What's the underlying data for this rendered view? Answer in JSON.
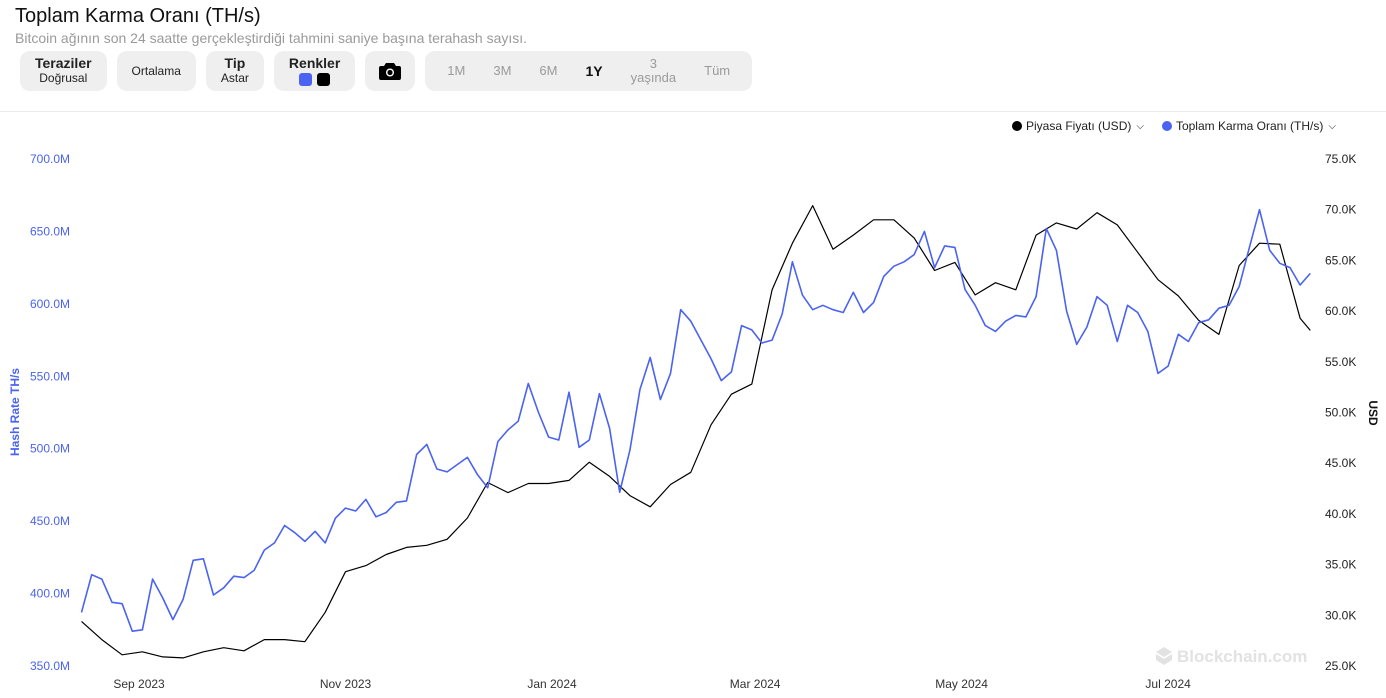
{
  "header": {
    "title": "Toplam Karma Oranı (TH/s)",
    "subtitle": "Bitcoin ağının son 24 saatte gerçekleştirdiği tahmini saniye başına terahash sayısı."
  },
  "toolbar": {
    "scales": {
      "label": "Teraziler",
      "value": "Doğrusal"
    },
    "average": {
      "label": "Ortalama"
    },
    "type": {
      "label": "Tip",
      "value": "Astar"
    },
    "colors": {
      "label": "Renkler",
      "swatches": [
        "#4a63f0",
        "#000000"
      ]
    },
    "camera_icon": "camera-icon",
    "ranges": [
      {
        "label": "1M",
        "active": false
      },
      {
        "label": "3M",
        "active": false
      },
      {
        "label": "6M",
        "active": false
      },
      {
        "label": "1Y",
        "active": true
      },
      {
        "label": "3 yaşında",
        "active": false
      },
      {
        "label": "Tüm",
        "active": false
      }
    ]
  },
  "legend": [
    {
      "label": "Piyasa Fiyatı (USD)",
      "color": "#000000"
    },
    {
      "label": "Toplam Karma Oranı (TH/s)",
      "color": "#4a63f0"
    }
  ],
  "watermark": "Blockchain.com",
  "chart_data": {
    "type": "line",
    "title": "Toplam Karma Oranı (TH/s)",
    "ylabel_left": "Hash Rate TH/s",
    "ylabel_right": "USD",
    "ylim_left": [
      350,
      700
    ],
    "ylim_right": [
      25,
      75
    ],
    "grid": false,
    "legend_placement": "top-right",
    "x_ticks": [
      {
        "date": "2023-09-01",
        "label": "Sep 2023"
      },
      {
        "date": "2023-11-01",
        "label": "Nov 2023"
      },
      {
        "date": "2024-01-01",
        "label": "Jan 2024"
      },
      {
        "date": "2024-03-01",
        "label": "Mar 2024"
      },
      {
        "date": "2024-05-01",
        "label": "May 2024"
      },
      {
        "date": "2024-07-01",
        "label": "Jul 2024"
      }
    ],
    "y_ticks_left": [
      {
        "value": 350,
        "label": "350.0M"
      },
      {
        "value": 400,
        "label": "400.0M"
      },
      {
        "value": 450,
        "label": "450.0M"
      },
      {
        "value": 500,
        "label": "500.0M"
      },
      {
        "value": 550,
        "label": "550.0M"
      },
      {
        "value": 600,
        "label": "600.0M"
      },
      {
        "value": 650,
        "label": "650.0M"
      },
      {
        "value": 700,
        "label": "700.0M"
      }
    ],
    "y_ticks_right": [
      {
        "value": 25,
        "label": "25.0K"
      },
      {
        "value": 30,
        "label": "30.0K"
      },
      {
        "value": 35,
        "label": "35.0K"
      },
      {
        "value": 40,
        "label": "40.0K"
      },
      {
        "value": 45,
        "label": "45.0K"
      },
      {
        "value": 50,
        "label": "50.0K"
      },
      {
        "value": 55,
        "label": "55.0K"
      },
      {
        "value": 60,
        "label": "60.0K"
      },
      {
        "value": 65,
        "label": "65.0K"
      },
      {
        "value": 70,
        "label": "70.0K"
      },
      {
        "value": 75,
        "label": "75.0K"
      }
    ],
    "series": [
      {
        "name": "Toplam Karma Oranı (TH/s)",
        "axis": "left",
        "unit": "M TH/s",
        "color": "#4a63f0",
        "x": [
          "2023-08-15",
          "2023-08-18",
          "2023-08-21",
          "2023-08-24",
          "2023-08-27",
          "2023-08-30",
          "2023-09-02",
          "2023-09-05",
          "2023-09-08",
          "2023-09-11",
          "2023-09-14",
          "2023-09-17",
          "2023-09-20",
          "2023-09-23",
          "2023-09-26",
          "2023-09-29",
          "2023-10-02",
          "2023-10-05",
          "2023-10-08",
          "2023-10-11",
          "2023-10-14",
          "2023-10-17",
          "2023-10-20",
          "2023-10-23",
          "2023-10-26",
          "2023-10-29",
          "2023-11-01",
          "2023-11-04",
          "2023-11-07",
          "2023-11-10",
          "2023-11-13",
          "2023-11-16",
          "2023-11-19",
          "2023-11-22",
          "2023-11-25",
          "2023-11-28",
          "2023-12-01",
          "2023-12-04",
          "2023-12-07",
          "2023-12-10",
          "2023-12-13",
          "2023-12-16",
          "2023-12-19",
          "2023-12-22",
          "2023-12-25",
          "2023-12-28",
          "2023-12-31",
          "2024-01-03",
          "2024-01-06",
          "2024-01-09",
          "2024-01-12",
          "2024-01-15",
          "2024-01-18",
          "2024-01-21",
          "2024-01-24",
          "2024-01-27",
          "2024-01-30",
          "2024-02-02",
          "2024-02-05",
          "2024-02-08",
          "2024-02-11",
          "2024-02-14",
          "2024-02-17",
          "2024-02-20",
          "2024-02-23",
          "2024-02-26",
          "2024-02-29",
          "2024-03-03",
          "2024-03-06",
          "2024-03-09",
          "2024-03-12",
          "2024-03-15",
          "2024-03-18",
          "2024-03-21",
          "2024-03-24",
          "2024-03-27",
          "2024-03-30",
          "2024-04-02",
          "2024-04-05",
          "2024-04-08",
          "2024-04-11",
          "2024-04-14",
          "2024-04-17",
          "2024-04-20",
          "2024-04-23",
          "2024-04-26",
          "2024-04-29",
          "2024-05-02",
          "2024-05-05",
          "2024-05-08",
          "2024-05-11",
          "2024-05-14",
          "2024-05-17",
          "2024-05-20",
          "2024-05-23",
          "2024-05-26",
          "2024-05-29",
          "2024-06-01",
          "2024-06-04",
          "2024-06-07",
          "2024-06-10",
          "2024-06-13",
          "2024-06-16",
          "2024-06-19",
          "2024-06-22",
          "2024-06-25",
          "2024-06-28",
          "2024-07-01",
          "2024-07-04",
          "2024-07-07",
          "2024-07-10",
          "2024-07-13",
          "2024-07-16",
          "2024-07-19",
          "2024-07-22",
          "2024-07-25",
          "2024-07-28",
          "2024-07-31",
          "2024-08-03",
          "2024-08-06",
          "2024-08-09",
          "2024-08-12"
        ],
        "values": [
          387,
          413,
          410,
          394,
          393,
          374,
          375,
          410,
          397,
          382,
          396,
          423,
          424,
          399,
          404,
          412,
          411,
          416,
          430,
          435,
          447,
          442,
          436,
          443,
          435,
          452,
          459,
          457,
          465,
          453,
          456,
          463,
          464,
          496,
          503,
          486,
          484,
          489,
          494,
          482,
          473,
          505,
          513,
          519,
          545,
          525,
          508,
          506,
          539,
          501,
          506,
          538,
          514,
          470,
          499,
          541,
          563,
          534,
          552,
          596,
          588,
          575,
          562,
          547,
          553,
          585,
          582,
          573,
          575,
          593,
          629,
          606,
          596,
          599,
          596,
          594,
          608,
          594,
          601,
          619,
          626,
          629,
          634,
          650,
          625,
          640,
          639,
          610,
          599,
          585,
          581,
          588,
          592,
          591,
          605,
          652,
          637,
          595,
          572,
          584,
          605,
          599,
          574,
          599,
          594,
          581,
          552,
          557,
          579,
          574,
          587,
          589,
          597,
          599,
          612,
          639,
          665,
          637,
          628,
          625,
          613,
          621
        ]
      },
      {
        "name": "Piyasa Fiyatı (USD)",
        "axis": "right",
        "unit": "K USD",
        "color": "#000000",
        "x": [
          "2023-08-15",
          "2023-08-21",
          "2023-08-27",
          "2023-09-02",
          "2023-09-08",
          "2023-09-14",
          "2023-09-20",
          "2023-09-26",
          "2023-10-02",
          "2023-10-08",
          "2023-10-14",
          "2023-10-20",
          "2023-10-26",
          "2023-11-01",
          "2023-11-07",
          "2023-11-13",
          "2023-11-19",
          "2023-11-25",
          "2023-12-01",
          "2023-12-07",
          "2023-12-13",
          "2023-12-19",
          "2023-12-25",
          "2023-12-31",
          "2024-01-06",
          "2024-01-12",
          "2024-01-18",
          "2024-01-24",
          "2024-01-30",
          "2024-02-05",
          "2024-02-11",
          "2024-02-17",
          "2024-02-23",
          "2024-02-29",
          "2024-03-06",
          "2024-03-12",
          "2024-03-18",
          "2024-03-24",
          "2024-03-30",
          "2024-04-05",
          "2024-04-11",
          "2024-04-17",
          "2024-04-23",
          "2024-04-29",
          "2024-05-05",
          "2024-05-11",
          "2024-05-17",
          "2024-05-23",
          "2024-05-29",
          "2024-06-04",
          "2024-06-10",
          "2024-06-16",
          "2024-06-22",
          "2024-06-28",
          "2024-07-04",
          "2024-07-10",
          "2024-07-16",
          "2024-07-22",
          "2024-07-28",
          "2024-08-03",
          "2024-08-09",
          "2024-08-12"
        ],
        "values": [
          29.4,
          27.6,
          26.1,
          26.4,
          25.9,
          25.8,
          26.4,
          26.8,
          26.5,
          27.6,
          27.6,
          27.4,
          30.3,
          34.3,
          34.9,
          36.0,
          36.7,
          36.9,
          37.5,
          39.6,
          43.1,
          42.1,
          43.0,
          43.0,
          43.3,
          45.1,
          43.7,
          41.8,
          40.7,
          42.9,
          44.1,
          48.8,
          51.8,
          52.8,
          62.1,
          66.7,
          70.4,
          66.1,
          67.5,
          69.0,
          69.0,
          67.2,
          64.0,
          64.8,
          61.6,
          62.8,
          62.1,
          67.5,
          68.7,
          68.1,
          69.7,
          68.5,
          65.8,
          63.1,
          61.5,
          59.1,
          57.7,
          64.5,
          66.7,
          66.6,
          59.3,
          58.1
        ]
      }
    ]
  }
}
